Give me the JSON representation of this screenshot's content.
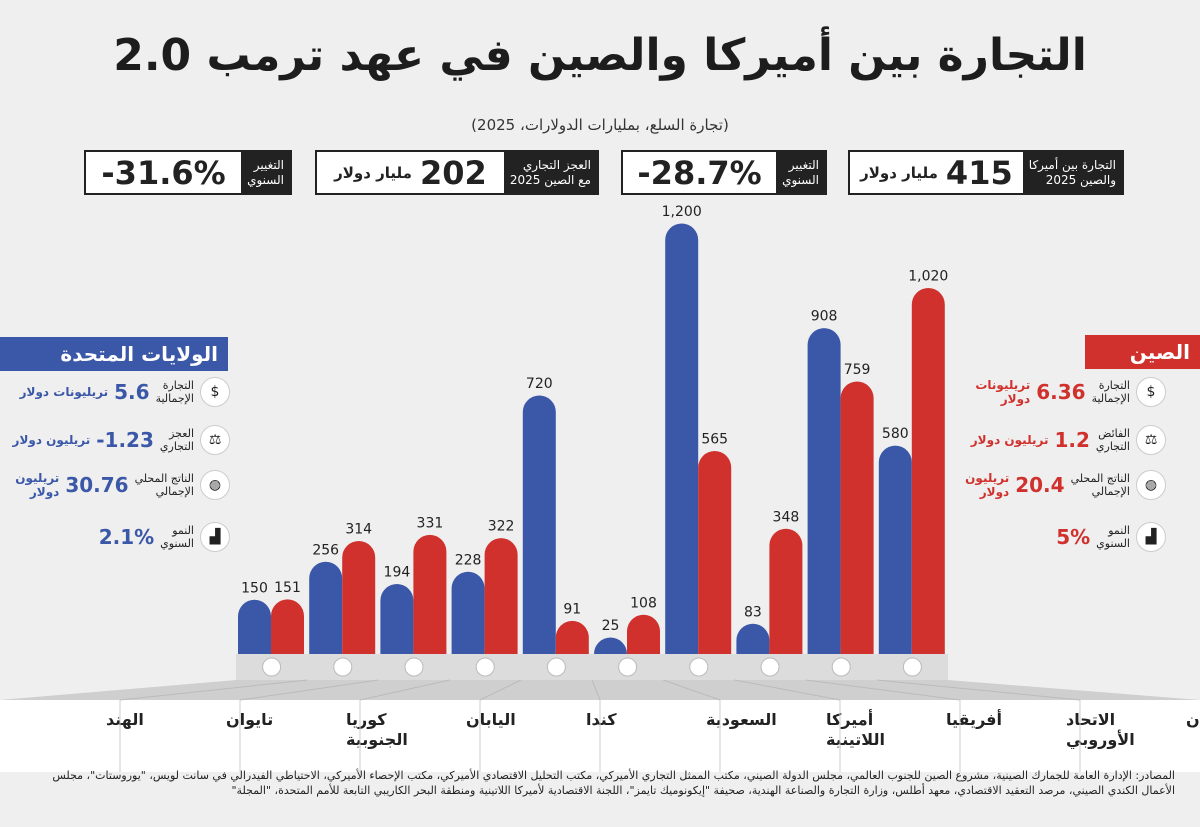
{
  "title": "التجارة بين أميركا والصين في عهد ترمب 2.0",
  "subtitle": "(تجارة السلع، بمليارات الدولارات، 2025)",
  "kpis": [
    {
      "label_l1": "التجارة بين أميركا",
      "label_l2": "والصين 2025",
      "value": "415",
      "unit": "مليار دولار"
    },
    {
      "label_l1": "التغيير",
      "label_l2": "السنوي",
      "value": "-28.7%",
      "unit": ""
    },
    {
      "label_l1": "العجز التجاري",
      "label_l2": "مع الصين 2025",
      "value": "202",
      "unit": "مليار دولار"
    },
    {
      "label_l1": "التغيير",
      "label_l2": "السنوي",
      "value": "-31.6%",
      "unit": ""
    }
  ],
  "usa": {
    "title": "الولايات المتحدة",
    "color": "#3a57a8",
    "stats": [
      {
        "icon": "coin-icon",
        "label_l1": "التجارة",
        "label_l2": "الإجمالية",
        "value": "5.6",
        "unit_l1": "تريليونات دولار",
        "unit_l2": ""
      },
      {
        "icon": "scale-icon",
        "label_l1": "العجز",
        "label_l2": "التجاري",
        "value": "-1.23",
        "unit_l1": "تريليون دولار",
        "unit_l2": ""
      },
      {
        "icon": "globe-dollar-icon",
        "label_l1": "الناتج المحلي",
        "label_l2": "الإجمالي",
        "value": "30.76",
        "unit_l1": "تريليون",
        "unit_l2": "دولار"
      },
      {
        "icon": "growth-chart-icon",
        "label_l1": "النمو",
        "label_l2": "السنوي",
        "value": "2.1%",
        "unit_l1": "",
        "unit_l2": ""
      }
    ]
  },
  "china": {
    "title": "الصين",
    "color": "#d0312d",
    "stats": [
      {
        "icon": "coin-icon",
        "label_l1": "التجارة",
        "label_l2": "الإجمالية",
        "value": "6.36",
        "unit_l1": "تريليونات",
        "unit_l2": "دولار"
      },
      {
        "icon": "scale-icon",
        "label_l1": "الفائض",
        "label_l2": "التجاري",
        "value": "1.2",
        "unit_l1": "تريليون دولار",
        "unit_l2": ""
      },
      {
        "icon": "globe-dollar-icon",
        "label_l1": "الناتج المحلي",
        "label_l2": "الإجمالي",
        "value": "20.4",
        "unit_l1": "تريليون",
        "unit_l2": "دولار"
      },
      {
        "icon": "growth-chart-icon",
        "label_l1": "النمو",
        "label_l2": "السنوي",
        "value": "5%",
        "unit_l1": "",
        "unit_l2": ""
      }
    ]
  },
  "chart_data": {
    "type": "bar",
    "categories": [
      "الهند",
      "تايوان",
      "كوريا الجنوبية",
      "اليابان",
      "كندا",
      "السعودية",
      "أميركا اللاتينية",
      "أفريقيا",
      "الاتحاد الأوروبي",
      "آسيان"
    ],
    "category_flags": [
      "india-flag-icon",
      "taiwan-flag-icon",
      "south-korea-flag-icon",
      "japan-flag-icon",
      "canada-flag-icon",
      "saudi-flag-icon",
      "globe-americas-icon",
      "globe-africa-icon",
      "eu-flag-icon",
      "globe-asia-icon"
    ],
    "series": [
      {
        "color": "#3a57a8",
        "values": [
          150,
          256,
          194,
          228,
          720,
          25,
          1200,
          83,
          908,
          580
        ]
      },
      {
        "color": "#d0312d",
        "values": [
          151,
          314,
          331,
          322,
          91,
          108,
          565,
          348,
          759,
          1020
        ]
      }
    ],
    "value_labels": [
      [
        "150",
        "256",
        "194",
        "228",
        "720",
        "25",
        "1,200",
        "83",
        "908",
        "580"
      ],
      [
        "151",
        "314",
        "331",
        "322",
        "91",
        "108",
        "565",
        "348",
        "759",
        "1,020"
      ]
    ],
    "ylim": [
      0,
      1200
    ],
    "grid": false
  },
  "sources": "المصادر: الإدارة العامة للجمارك الصينية، مشروع الصين للجنوب العالمي، مجلس الدولة الصيني، مكتب الممثل التجاري الأميركي، مكتب التحليل الاقتصادي الأميركي، مكتب الإحصاء الأميركي، الاحتياطي الفيدرالي في سانت لويس، \"يوروستات\"، مجلس الأعمال الكندي الصيني، مرصد التعقيد الاقتصادي، معهد أطلس، وزارة التجارة والصناعة الهندية، صحيفة \"إيكونوميك تايمز\"، اللجنة الاقتصادية لأميركا اللاتينية ومنطقة البحر الكاريبي التابعة للأمم المتحدة، \"المجلة\""
}
